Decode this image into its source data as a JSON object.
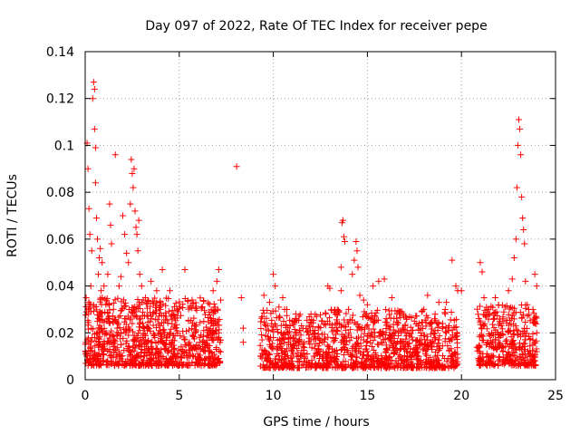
{
  "chart_data": {
    "type": "scatter",
    "title": "Day 097 of 2022, Rate Of TEC Index for receiver pepe",
    "xlabel": "GPS time / hours",
    "ylabel": "ROTI / TECUs",
    "xlim": [
      0,
      25
    ],
    "ylim": [
      0,
      0.14
    ],
    "x_ticks": [
      "0",
      "5",
      "10",
      "15",
      "20",
      "25"
    ],
    "y_ticks": [
      "0",
      "0.02",
      "0.04",
      "0.06",
      "0.08",
      "0.1",
      "0.12",
      "0.14"
    ],
    "grid": true,
    "marker": "+",
    "color": "#ff0000",
    "series": [
      {
        "points": [
          [
            0.05,
            0.035
          ],
          [
            0.1,
            0.101
          ],
          [
            0.15,
            0.09
          ],
          [
            0.2,
            0.073
          ],
          [
            0.25,
            0.062
          ],
          [
            0.3,
            0.04
          ],
          [
            0.35,
            0.055
          ],
          [
            0.4,
            0.12
          ],
          [
            0.45,
            0.127
          ],
          [
            0.5,
            0.124
          ],
          [
            0.5,
            0.107
          ],
          [
            0.55,
            0.099
          ],
          [
            0.55,
            0.084
          ],
          [
            0.6,
            0.069
          ],
          [
            0.65,
            0.06
          ],
          [
            0.7,
            0.045
          ],
          [
            0.75,
            0.052
          ],
          [
            0.8,
            0.056
          ],
          [
            0.85,
            0.038
          ],
          [
            0.9,
            0.05
          ],
          [
            1.0,
            0.04
          ],
          [
            1.1,
            0.032
          ],
          [
            1.2,
            0.045
          ],
          [
            1.3,
            0.075
          ],
          [
            1.35,
            0.066
          ],
          [
            1.4,
            0.058
          ],
          [
            1.5,
            0.03
          ],
          [
            1.6,
            0.096
          ],
          [
            1.8,
            0.04
          ],
          [
            1.9,
            0.044
          ],
          [
            2.0,
            0.07
          ],
          [
            2.1,
            0.062
          ],
          [
            2.2,
            0.054
          ],
          [
            2.3,
            0.05
          ],
          [
            2.4,
            0.075
          ],
          [
            2.45,
            0.094
          ],
          [
            2.5,
            0.088
          ],
          [
            2.55,
            0.082
          ],
          [
            2.6,
            0.09
          ],
          [
            2.65,
            0.072
          ],
          [
            2.7,
            0.065
          ],
          [
            2.75,
            0.062
          ],
          [
            2.8,
            0.055
          ],
          [
            2.85,
            0.068
          ],
          [
            2.9,
            0.045
          ],
          [
            3.0,
            0.04
          ],
          [
            3.2,
            0.035
          ],
          [
            3.5,
            0.042
          ],
          [
            3.8,
            0.038
          ],
          [
            4.0,
            0.03
          ],
          [
            4.1,
            0.047
          ],
          [
            4.5,
            0.038
          ],
          [
            5.3,
            0.047
          ],
          [
            6.8,
            0.038
          ],
          [
            7.0,
            0.042
          ],
          [
            7.1,
            0.047
          ],
          [
            6.9,
            0.031
          ],
          [
            7.2,
            0.034
          ],
          [
            8.05,
            0.091
          ],
          [
            8.3,
            0.035
          ],
          [
            8.4,
            0.022
          ],
          [
            8.4,
            0.016
          ],
          [
            9.5,
            0.036
          ],
          [
            9.8,
            0.033
          ],
          [
            10.0,
            0.045
          ],
          [
            10.1,
            0.04
          ],
          [
            10.3,
            0.031
          ],
          [
            10.5,
            0.035
          ],
          [
            10.6,
            0.03
          ],
          [
            11.0,
            0.025
          ],
          [
            11.5,
            0.023
          ],
          [
            12.0,
            0.028
          ],
          [
            12.3,
            0.027
          ],
          [
            12.6,
            0.025
          ],
          [
            12.9,
            0.04
          ],
          [
            13.0,
            0.039
          ],
          [
            13.3,
            0.028
          ],
          [
            13.6,
            0.038
          ],
          [
            13.65,
            0.067
          ],
          [
            13.7,
            0.068
          ],
          [
            13.75,
            0.061
          ],
          [
            13.8,
            0.059
          ],
          [
            13.6,
            0.048
          ],
          [
            14.0,
            0.03
          ],
          [
            14.2,
            0.045
          ],
          [
            14.3,
            0.051
          ],
          [
            14.4,
            0.059
          ],
          [
            14.45,
            0.055
          ],
          [
            14.5,
            0.048
          ],
          [
            14.6,
            0.036
          ],
          [
            14.8,
            0.034
          ],
          [
            15.0,
            0.032
          ],
          [
            15.3,
            0.04
          ],
          [
            15.6,
            0.042
          ],
          [
            15.9,
            0.043
          ],
          [
            16.3,
            0.035
          ],
          [
            16.7,
            0.028
          ],
          [
            17.0,
            0.023
          ],
          [
            17.5,
            0.025
          ],
          [
            18.0,
            0.03
          ],
          [
            18.2,
            0.036
          ],
          [
            18.4,
            0.024
          ],
          [
            18.6,
            0.028
          ],
          [
            18.8,
            0.033
          ],
          [
            19.2,
            0.033
          ],
          [
            19.5,
            0.051
          ],
          [
            19.7,
            0.04
          ],
          [
            19.8,
            0.038
          ],
          [
            20.0,
            0.038
          ],
          [
            21.0,
            0.05
          ],
          [
            21.1,
            0.046
          ],
          [
            21.2,
            0.035
          ],
          [
            21.5,
            0.028
          ],
          [
            21.8,
            0.035
          ],
          [
            22.2,
            0.026
          ],
          [
            22.5,
            0.038
          ],
          [
            22.7,
            0.043
          ],
          [
            22.8,
            0.052
          ],
          [
            22.9,
            0.06
          ],
          [
            22.95,
            0.082
          ],
          [
            23.0,
            0.1
          ],
          [
            23.05,
            0.111
          ],
          [
            23.1,
            0.107
          ],
          [
            23.15,
            0.096
          ],
          [
            23.2,
            0.078
          ],
          [
            23.25,
            0.069
          ],
          [
            23.3,
            0.064
          ],
          [
            23.35,
            0.058
          ],
          [
            23.4,
            0.042
          ],
          [
            23.5,
            0.032
          ],
          [
            23.8,
            0.03
          ],
          [
            23.9,
            0.045
          ],
          [
            24.0,
            0.04
          ],
          [
            24.0,
            0.02
          ],
          [
            0.1,
            0.011
          ],
          [
            0.3,
            0.016
          ],
          [
            0.5,
            0.018
          ],
          [
            0.7,
            0.009
          ],
          [
            0.9,
            0.014
          ],
          [
            1.1,
            0.02
          ],
          [
            1.3,
            0.012
          ],
          [
            1.5,
            0.017
          ],
          [
            1.7,
            0.022
          ],
          [
            1.9,
            0.015
          ],
          [
            2.1,
            0.026
          ],
          [
            2.3,
            0.019
          ],
          [
            2.5,
            0.024
          ],
          [
            2.7,
            0.029
          ],
          [
            2.9,
            0.021
          ],
          [
            3.1,
            0.017
          ],
          [
            3.3,
            0.022
          ],
          [
            3.5,
            0.014
          ],
          [
            3.7,
            0.018
          ],
          [
            3.9,
            0.012
          ],
          [
            4.1,
            0.016
          ],
          [
            4.3,
            0.009
          ],
          [
            4.5,
            0.02
          ],
          [
            4.7,
            0.013
          ],
          [
            4.9,
            0.011
          ],
          [
            5.1,
            0.014
          ],
          [
            5.3,
            0.017
          ],
          [
            5.5,
            0.01
          ],
          [
            5.7,
            0.019
          ],
          [
            5.9,
            0.013
          ],
          [
            6.1,
            0.016
          ],
          [
            6.3,
            0.021
          ],
          [
            6.5,
            0.015
          ],
          [
            6.7,
            0.018
          ],
          [
            6.9,
            0.025
          ],
          [
            7.1,
            0.02
          ],
          [
            9.4,
            0.017
          ],
          [
            9.6,
            0.012
          ],
          [
            9.8,
            0.015
          ],
          [
            10.0,
            0.018
          ],
          [
            10.2,
            0.011
          ],
          [
            10.4,
            0.014
          ],
          [
            10.6,
            0.009
          ],
          [
            10.8,
            0.016
          ],
          [
            11.0,
            0.012
          ],
          [
            11.2,
            0.019
          ],
          [
            11.4,
            0.008
          ],
          [
            11.6,
            0.014
          ],
          [
            11.8,
            0.011
          ],
          [
            12.0,
            0.017
          ],
          [
            12.2,
            0.01
          ],
          [
            12.4,
            0.013
          ],
          [
            12.6,
            0.016
          ],
          [
            12.8,
            0.009
          ],
          [
            13.0,
            0.014
          ],
          [
            13.2,
            0.018
          ],
          [
            13.4,
            0.011
          ],
          [
            13.6,
            0.016
          ],
          [
            13.8,
            0.013
          ],
          [
            14.0,
            0.019
          ],
          [
            14.2,
            0.01
          ],
          [
            14.4,
            0.015
          ],
          [
            14.6,
            0.022
          ],
          [
            14.8,
            0.017
          ],
          [
            15.0,
            0.012
          ],
          [
            15.2,
            0.02
          ],
          [
            15.4,
            0.027
          ],
          [
            15.6,
            0.015
          ],
          [
            15.8,
            0.019
          ],
          [
            16.0,
            0.013
          ],
          [
            16.2,
            0.018
          ],
          [
            16.4,
            0.011
          ],
          [
            16.6,
            0.016
          ],
          [
            16.8,
            0.02
          ],
          [
            17.0,
            0.014
          ],
          [
            17.2,
            0.01
          ],
          [
            17.4,
            0.017
          ],
          [
            17.6,
            0.012
          ],
          [
            17.8,
            0.015
          ],
          [
            18.0,
            0.019
          ],
          [
            18.2,
            0.013
          ],
          [
            18.4,
            0.016
          ],
          [
            18.6,
            0.021
          ],
          [
            18.8,
            0.017
          ],
          [
            19.0,
            0.024
          ],
          [
            19.2,
            0.02
          ],
          [
            21.0,
            0.019
          ],
          [
            21.2,
            0.023
          ],
          [
            21.4,
            0.016
          ],
          [
            21.6,
            0.02
          ],
          [
            21.8,
            0.014
          ],
          [
            22.0,
            0.018
          ],
          [
            22.2,
            0.012
          ],
          [
            22.4,
            0.017
          ],
          [
            22.6,
            0.021
          ],
          [
            22.8,
            0.015
          ],
          [
            23.0,
            0.019
          ],
          [
            23.2,
            0.013
          ],
          [
            23.4,
            0.017
          ],
          [
            23.6,
            0.011
          ],
          [
            23.8,
            0.015
          ],
          [
            23.9,
            0.008
          ],
          [
            24.0,
            0.012
          ]
        ],
        "cloud": [
          {
            "from": 0.0,
            "to": 7.2,
            "min": 0.006,
            "max": 0.035,
            "n": 900
          },
          {
            "from": 9.3,
            "to": 19.8,
            "min": 0.005,
            "max": 0.03,
            "n": 1100
          },
          {
            "from": 20.8,
            "to": 24.0,
            "min": 0.006,
            "max": 0.032,
            "n": 350
          }
        ]
      }
    ]
  }
}
